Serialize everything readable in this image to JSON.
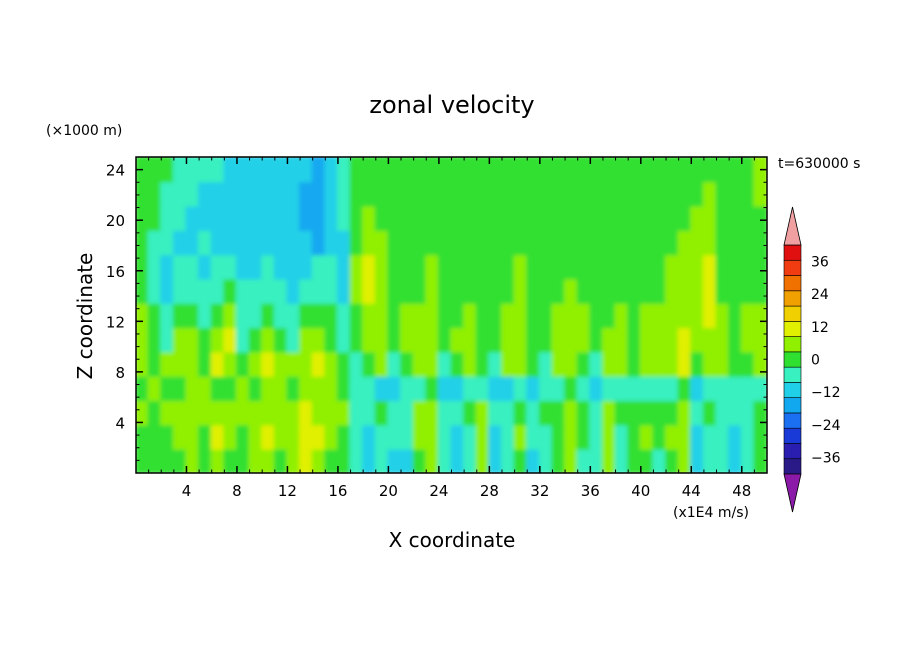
{
  "chart_data": {
    "type": "heatmap",
    "title": "zonal velocity",
    "xlabel": "X coordinate",
    "ylabel": "Z coordinate",
    "x_unit": "(x1E4 m/s)",
    "y_unit": "(×1000 m)",
    "time_label": "t=630000 s",
    "xlim": [
      0,
      50
    ],
    "ylim": [
      0,
      25
    ],
    "x_ticks": [
      4,
      8,
      12,
      16,
      20,
      24,
      28,
      32,
      36,
      40,
      44,
      48
    ],
    "y_ticks": [
      4,
      8,
      12,
      16,
      20,
      24
    ],
    "x_tick_labels": [
      "4",
      "8",
      "12",
      "16",
      "20",
      "24",
      "28",
      "32",
      "36",
      "40",
      "44",
      "48"
    ],
    "y_tick_labels": [
      "4",
      "8",
      "12",
      "16",
      "20",
      "24"
    ],
    "colorbar": {
      "levels": [
        -42,
        -36,
        -30,
        -24,
        -18,
        -12,
        -6,
        0,
        6,
        12,
        18,
        24,
        30,
        36,
        42
      ],
      "labels": [
        "36",
        "24",
        "12",
        "0",
        "−12",
        "−24",
        "−36"
      ],
      "label_values": [
        36,
        24,
        12,
        0,
        -12,
        -24,
        -36
      ],
      "colors": [
        "#2a1a88",
        "#2a1eb0",
        "#1a3ad8",
        "#1a70f0",
        "#12a8f0",
        "#20d0e8",
        "#38f0c0",
        "#30e030",
        "#90f000",
        "#e0f000",
        "#f0d000",
        "#f0a000",
        "#f07000",
        "#f03c10",
        "#e01010"
      ],
      "under_color": "#8c1aa8",
      "over_color": "#f0a0a0"
    },
    "sample_values_note_free": true,
    "grid": [
      [
        2,
        0,
        2,
        4,
        6,
        2,
        8,
        4,
        2,
        6,
        10,
        4,
        6,
        12,
        10,
        4,
        2,
        -6,
        -12,
        -4,
        -8,
        -10,
        4,
        8,
        -6,
        -10,
        -4,
        6,
        -10,
        -6,
        4,
        -8,
        -4,
        2,
        6,
        -2,
        -6,
        8,
        -4,
        2,
        4,
        -2,
        4,
        6,
        -10,
        -4,
        -6,
        -10,
        -6,
        2
      ],
      [
        4,
        2,
        4,
        8,
        10,
        4,
        12,
        8,
        4,
        10,
        12,
        8,
        10,
        14,
        12,
        8,
        4,
        -4,
        -8,
        -2,
        -6,
        -6,
        8,
        10,
        -4,
        -8,
        -2,
        8,
        -8,
        -4,
        6,
        -6,
        -2,
        4,
        8,
        0,
        -4,
        10,
        -2,
        4,
        6,
        0,
        6,
        8,
        -8,
        -2,
        -4,
        -8,
        -4,
        4
      ],
      [
        6,
        4,
        6,
        6,
        8,
        6,
        10,
        6,
        6,
        8,
        10,
        6,
        8,
        12,
        10,
        6,
        6,
        -2,
        -4,
        0,
        -4,
        -2,
        6,
        8,
        -2,
        -4,
        0,
        6,
        -4,
        -2,
        4,
        -4,
        0,
        2,
        6,
        2,
        -2,
        8,
        0,
        2,
        4,
        2,
        4,
        6,
        -4,
        0,
        -2,
        -4,
        -2,
        2
      ],
      [
        4,
        6,
        4,
        2,
        6,
        8,
        4,
        2,
        8,
        4,
        6,
        8,
        4,
        6,
        8,
        6,
        4,
        -4,
        -6,
        -8,
        -10,
        -6,
        -2,
        2,
        -8,
        -12,
        -6,
        -2,
        -8,
        -10,
        -4,
        -8,
        -6,
        -2,
        0,
        -4,
        -8,
        -2,
        -6,
        -4,
        -2,
        -6,
        -2,
        0,
        -8,
        -6,
        -4,
        -6,
        -4,
        -2
      ],
      [
        8,
        4,
        6,
        10,
        8,
        4,
        12,
        10,
        4,
        8,
        12,
        10,
        6,
        10,
        12,
        8,
        2,
        -2,
        4,
        8,
        -4,
        2,
        6,
        10,
        -2,
        4,
        8,
        2,
        -4,
        6,
        8,
        2,
        -2,
        6,
        10,
        4,
        -2,
        8,
        10,
        2,
        6,
        10,
        8,
        12,
        4,
        8,
        6,
        2,
        4,
        6
      ],
      [
        10,
        2,
        -4,
        6,
        10,
        2,
        8,
        12,
        -2,
        4,
        10,
        2,
        -4,
        6,
        10,
        4,
        -2,
        2,
        8,
        10,
        2,
        6,
        8,
        10,
        2,
        6,
        8,
        4,
        2,
        8,
        10,
        4,
        2,
        8,
        10,
        6,
        2,
        6,
        8,
        4,
        6,
        8,
        10,
        12,
        8,
        10,
        8,
        4,
        6,
        8
      ],
      [
        6,
        0,
        -6,
        2,
        4,
        -2,
        4,
        6,
        -4,
        -2,
        4,
        -2,
        -6,
        0,
        4,
        0,
        -6,
        4,
        10,
        8,
        4,
        6,
        6,
        8,
        4,
        4,
        6,
        4,
        4,
        6,
        8,
        4,
        4,
        6,
        8,
        6,
        4,
        4,
        6,
        4,
        6,
        6,
        8,
        10,
        10,
        12,
        6,
        4,
        6,
        6
      ],
      [
        2,
        -2,
        -8,
        -4,
        -2,
        -6,
        -2,
        0,
        -6,
        -4,
        -2,
        -6,
        -8,
        -6,
        -4,
        -4,
        -8,
        6,
        12,
        8,
        4,
        4,
        4,
        6,
        4,
        2,
        4,
        2,
        4,
        4,
        6,
        2,
        4,
        4,
        6,
        4,
        4,
        2,
        4,
        2,
        4,
        4,
        6,
        8,
        10,
        12,
        4,
        2,
        4,
        4
      ],
      [
        0,
        -4,
        -8,
        -6,
        -6,
        -8,
        -6,
        -6,
        -8,
        -8,
        -6,
        -8,
        -10,
        -8,
        -6,
        -6,
        -8,
        6,
        12,
        8,
        4,
        4,
        4,
        6,
        4,
        2,
        4,
        2,
        4,
        4,
        6,
        2,
        2,
        2,
        4,
        2,
        2,
        2,
        2,
        2,
        4,
        4,
        6,
        8,
        10,
        12,
        4,
        2,
        2,
        2
      ],
      [
        2,
        -2,
        -6,
        -8,
        -8,
        -6,
        -8,
        -8,
        -10,
        -10,
        -8,
        -10,
        -12,
        -12,
        -16,
        -10,
        -8,
        4,
        10,
        6,
        4,
        2,
        2,
        4,
        2,
        2,
        2,
        2,
        4,
        2,
        4,
        2,
        0,
        0,
        2,
        0,
        0,
        0,
        2,
        2,
        2,
        4,
        4,
        6,
        8,
        10,
        4,
        2,
        2,
        2
      ],
      [
        2,
        0,
        -4,
        -6,
        -8,
        -8,
        -8,
        -8,
        -10,
        -10,
        -10,
        -10,
        -12,
        -14,
        -18,
        -10,
        -6,
        2,
        6,
        4,
        4,
        2,
        2,
        2,
        2,
        2,
        2,
        2,
        2,
        2,
        2,
        2,
        0,
        0,
        0,
        0,
        0,
        0,
        0,
        2,
        2,
        4,
        2,
        4,
        6,
        8,
        2,
        2,
        2,
        4
      ],
      [
        2,
        0,
        -2,
        -4,
        -6,
        -8,
        -8,
        -8,
        -10,
        -8,
        -10,
        -10,
        -12,
        -14,
        -16,
        -10,
        -6,
        2,
        4,
        4,
        4,
        2,
        2,
        2,
        2,
        2,
        2,
        2,
        2,
        2,
        2,
        2,
        0,
        0,
        0,
        0,
        0,
        0,
        0,
        2,
        2,
        2,
        2,
        4,
        4,
        6,
        2,
        2,
        4,
        6
      ],
      [
        2,
        2,
        0,
        -2,
        -4,
        -6,
        -6,
        -8,
        -8,
        -8,
        -8,
        -10,
        -10,
        -12,
        -14,
        -10,
        -6,
        2,
        4,
        4,
        2,
        2,
        2,
        2,
        2,
        2,
        2,
        2,
        2,
        2,
        2,
        2,
        0,
        0,
        0,
        0,
        0,
        0,
        0,
        2,
        2,
        2,
        2,
        2,
        4,
        4,
        2,
        2,
        4,
        6
      ]
    ]
  }
}
